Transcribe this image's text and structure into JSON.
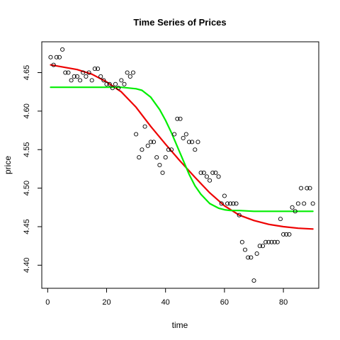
{
  "chart_data": {
    "type": "scatter",
    "title": "Time Series of Prices",
    "xlabel": "time",
    "ylabel": "price",
    "xlim": [
      -2,
      92
    ],
    "ylim": [
      4.37,
      4.69
    ],
    "x_ticks": [
      {
        "value": 0,
        "label": "0"
      },
      {
        "value": 20,
        "label": "20"
      },
      {
        "value": 40,
        "label": "40"
      },
      {
        "value": 60,
        "label": "60"
      },
      {
        "value": 80,
        "label": "80"
      }
    ],
    "y_ticks": [
      {
        "value": 4.4,
        "label": "4.40"
      },
      {
        "value": 4.45,
        "label": "4.45"
      },
      {
        "value": 4.5,
        "label": "4.50"
      },
      {
        "value": 4.55,
        "label": "4.55"
      },
      {
        "value": 4.6,
        "label": "4.60"
      },
      {
        "value": 4.65,
        "label": "4.65"
      }
    ],
    "grid": false,
    "points": {
      "x": [
        1,
        2,
        3,
        4,
        5,
        6,
        7,
        8,
        9,
        10,
        11,
        12,
        13,
        14,
        15,
        16,
        17,
        18,
        19,
        20,
        21,
        22,
        23,
        24,
        25,
        26,
        27,
        28,
        29,
        30,
        31,
        32,
        33,
        34,
        35,
        36,
        37,
        38,
        39,
        40,
        41,
        42,
        43,
        44,
        45,
        46,
        47,
        48,
        49,
        50,
        51,
        52,
        53,
        54,
        55,
        56,
        57,
        58,
        59,
        60,
        61,
        62,
        63,
        64,
        65,
        66,
        67,
        68,
        69,
        70,
        71,
        72,
        73,
        74,
        75,
        76,
        77,
        78,
        79,
        80,
        81,
        82,
        83,
        84,
        85,
        86,
        87,
        88,
        89,
        90
      ],
      "y": [
        4.67,
        4.66,
        4.67,
        4.67,
        4.68,
        4.65,
        4.65,
        4.64,
        4.645,
        4.645,
        4.64,
        4.65,
        4.645,
        4.65,
        4.64,
        4.655,
        4.655,
        4.645,
        4.64,
        4.635,
        4.635,
        4.63,
        4.635,
        4.63,
        4.64,
        4.635,
        4.65,
        4.645,
        4.65,
        4.57,
        4.54,
        4.55,
        4.58,
        4.555,
        4.56,
        4.56,
        4.54,
        4.53,
        4.52,
        4.54,
        4.55,
        4.55,
        4.57,
        4.59,
        4.59,
        4.565,
        4.57,
        4.56,
        4.56,
        4.55,
        4.56,
        4.52,
        4.52,
        4.515,
        4.51,
        4.52,
        4.52,
        4.515,
        4.48,
        4.49,
        4.48,
        4.48,
        4.48,
        4.48,
        4.465,
        4.43,
        4.42,
        4.41,
        4.41,
        4.38,
        4.415,
        4.425,
        4.425,
        4.43,
        4.43,
        4.43,
        4.43,
        4.43,
        4.46,
        4.44,
        4.44,
        4.44,
        4.475,
        4.47,
        4.48,
        4.5,
        4.48,
        4.5,
        4.5,
        4.48
      ],
      "marker": "open-circle",
      "color": "#000000"
    },
    "series": [
      {
        "color": "#ee0000",
        "x": [
          1,
          10,
          15,
          20,
          25,
          30,
          35,
          40,
          45,
          50,
          55,
          60,
          65,
          70,
          75,
          80,
          85,
          90
        ],
        "y": [
          4.66,
          4.654,
          4.648,
          4.638,
          4.625,
          4.605,
          4.58,
          4.557,
          4.535,
          4.514,
          4.494,
          4.477,
          4.465,
          4.458,
          4.453,
          4.45,
          4.448,
          4.447
        ]
      },
      {
        "color": "#00ee00",
        "x": [
          1,
          25,
          30,
          32,
          35,
          38,
          40,
          42,
          45,
          48,
          50,
          52,
          55,
          58,
          60,
          62,
          65,
          70,
          75,
          80,
          85,
          90
        ],
        "y": [
          4.631,
          4.631,
          4.629,
          4.627,
          4.618,
          4.602,
          4.588,
          4.572,
          4.545,
          4.518,
          4.503,
          4.492,
          4.48,
          4.474,
          4.472,
          4.471,
          4.471,
          4.47,
          4.47,
          4.47,
          4.47,
          4.47
        ]
      }
    ]
  }
}
